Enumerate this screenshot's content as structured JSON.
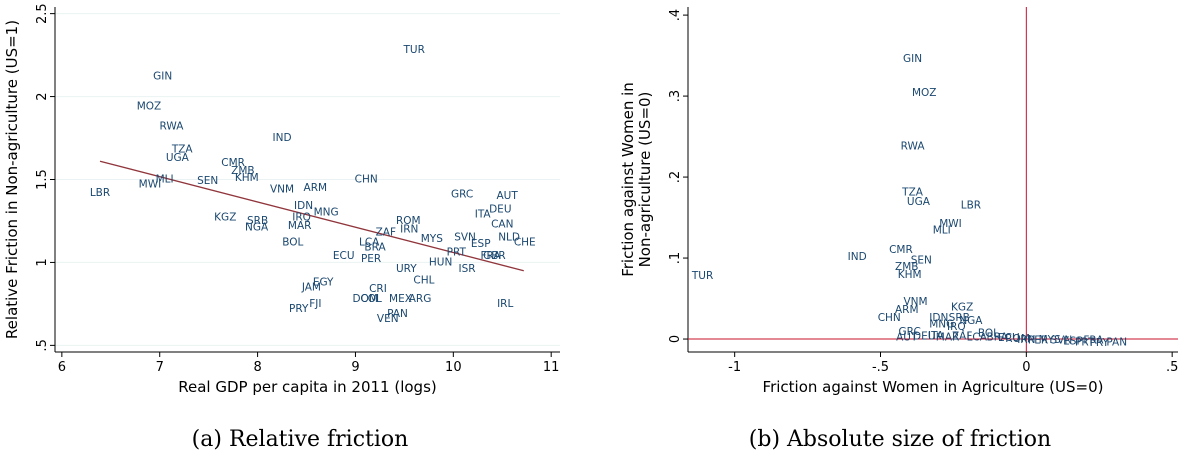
{
  "chart_data": [
    {
      "type": "scatter",
      "caption": "(a) Relative friction",
      "xlabel": "Real GDP per capita in 2011 (logs)",
      "ylabel": [
        "Relative Friction in Non-agriculture (US=1)"
      ],
      "xlim": [
        5.93,
        11.09
      ],
      "ylim": [
        0.46,
        2.54
      ],
      "xticks": [
        6,
        7,
        8,
        9,
        10,
        11
      ],
      "yticks": [
        {
          "value": 0.5,
          "label": ".5"
        },
        1,
        1.5,
        2,
        2.5
      ],
      "grid": true,
      "color": "#1a476f",
      "labels": [
        "TUR",
        "GIN",
        "MOZ",
        "RWA",
        "IND",
        "TZA",
        "UGA",
        "CMR",
        "ZMB",
        "KHM",
        "SEN",
        "MLI",
        "MWI",
        "LBR",
        "VNM",
        "ARM",
        "CHN",
        "GRC",
        "AUT",
        "DEU",
        "ITA",
        "CAN",
        "NLD",
        "CHE",
        "IDN",
        "MNG",
        "IRQ",
        "KGZ",
        "SRB",
        "NGA",
        "MAR",
        "ROM",
        "IRN",
        "ZAF",
        "BOL",
        "LCA",
        "BRA",
        "MYS",
        "SVN",
        "ESP",
        "PRT",
        "FRA",
        "GBR",
        "ECU",
        "PER",
        "HUN",
        "URY",
        "ISR",
        "CHL",
        "EGY",
        "JAM",
        "CRI",
        "DOM",
        "COL",
        "MEX",
        "ARG",
        "IRL",
        "FJI",
        "PRY",
        "PAN",
        "VEN"
      ],
      "x": [
        9.6,
        7.03,
        6.89,
        7.12,
        8.25,
        7.23,
        7.18,
        7.75,
        7.85,
        7.89,
        7.49,
        7.05,
        6.9,
        6.39,
        8.25,
        8.59,
        9.11,
        10.09,
        10.55,
        10.48,
        10.3,
        10.5,
        10.57,
        10.73,
        8.47,
        8.7,
        8.45,
        7.67,
        8.0,
        7.99,
        8.43,
        9.54,
        9.55,
        9.31,
        8.36,
        9.14,
        9.2,
        9.78,
        10.12,
        10.28,
        10.03,
        10.38,
        10.42,
        8.88,
        9.16,
        9.87,
        9.52,
        10.14,
        9.7,
        8.67,
        8.55,
        9.23,
        9.1,
        9.16,
        9.46,
        9.66,
        10.53,
        8.59,
        8.42,
        9.43,
        9.33
      ],
      "values": [
        2.28,
        2.12,
        1.94,
        1.82,
        1.75,
        1.68,
        1.63,
        1.6,
        1.55,
        1.51,
        1.49,
        1.5,
        1.47,
        1.42,
        1.44,
        1.45,
        1.5,
        1.41,
        1.4,
        1.32,
        1.29,
        1.23,
        1.15,
        1.12,
        1.34,
        1.3,
        1.27,
        1.27,
        1.25,
        1.21,
        1.22,
        1.25,
        1.2,
        1.18,
        1.12,
        1.12,
        1.09,
        1.14,
        1.15,
        1.11,
        1.06,
        1.04,
        1.04,
        1.04,
        1.02,
        1.0,
        0.96,
        0.96,
        0.89,
        0.88,
        0.85,
        0.84,
        0.78,
        0.78,
        0.78,
        0.78,
        0.75,
        0.75,
        0.72,
        0.69,
        0.66
      ],
      "fit": {
        "x": [
          6.39,
          10.72
        ],
        "values": [
          1.61,
          0.95
        ],
        "color": "#90353b"
      }
    },
    {
      "type": "scatter",
      "caption": "(b) Absolute size of friction",
      "xlabel": "Friction against Women in Agriculture (US=0)",
      "ylabel": [
        "Friction against Women in",
        "Non-agriculture (US=0)"
      ],
      "xlim": [
        -1.16,
        0.52
      ],
      "ylim": [
        -0.016,
        0.41
      ],
      "xticks": [
        -1,
        {
          "value": -0.5,
          "label": "-.5"
        },
        0,
        {
          "value": 0.5,
          "label": ".5"
        }
      ],
      "yticks": [
        0,
        {
          "value": 0.1,
          "label": ".1"
        },
        {
          "value": 0.2,
          "label": ".2"
        },
        {
          "value": 0.3,
          "label": ".3"
        },
        {
          "value": 0.4,
          "label": ".4"
        }
      ],
      "grid": false,
      "color": "#1a476f",
      "labels": [
        "GIN",
        "MOZ",
        "RWA",
        "TZA",
        "UGA",
        "LBR",
        "MWI",
        "MLI",
        "CMR",
        "SEN",
        "IND",
        "ZMB",
        "KHM",
        "TUR",
        "VNM",
        "KGZ",
        "ARM",
        "IDN",
        "SRB",
        "CHN",
        "NGA",
        "MNG",
        "IRQ",
        "GRC",
        "BOL",
        "AUT",
        "DEU",
        "ITA",
        "MAR",
        "ZAF",
        "LCA",
        "BRA",
        "ECU",
        "ROM",
        "IRN",
        "PER",
        "MYS",
        "SVN",
        "ESP",
        "PRT",
        "FRA",
        "PRY",
        "PAN"
      ],
      "x": [
        -0.39,
        -0.35,
        -0.39,
        -0.39,
        -0.37,
        -0.19,
        -0.26,
        -0.29,
        -0.43,
        -0.36,
        -0.58,
        -0.41,
        -0.4,
        -1.11,
        -0.38,
        -0.22,
        -0.41,
        -0.3,
        -0.23,
        -0.47,
        -0.19,
        -0.29,
        -0.24,
        -0.4,
        -0.13,
        -0.41,
        -0.35,
        -0.31,
        -0.27,
        -0.22,
        -0.17,
        -0.1,
        -0.06,
        -0.03,
        0.0,
        0.04,
        0.08,
        0.12,
        0.16,
        0.2,
        0.23,
        0.25,
        0.31
      ],
      "values": [
        0.346,
        0.304,
        0.238,
        0.181,
        0.169,
        0.165,
        0.142,
        0.134,
        0.11,
        0.097,
        0.101,
        0.089,
        0.079,
        0.078,
        0.046,
        0.039,
        0.036,
        0.026,
        0.026,
        0.026,
        0.022,
        0.018,
        0.015,
        0.009,
        0.007,
        0.002,
        0.003,
        0.004,
        0.002,
        0.003,
        0.002,
        0.002,
        0.001,
        0.0,
        -0.001,
        -0.002,
        -0.001,
        -0.002,
        -0.003,
        -0.004,
        -0.002,
        -0.005,
        -0.004
      ],
      "reflines": {
        "x": 0,
        "y": 0,
        "color": "#c8102e"
      }
    }
  ]
}
